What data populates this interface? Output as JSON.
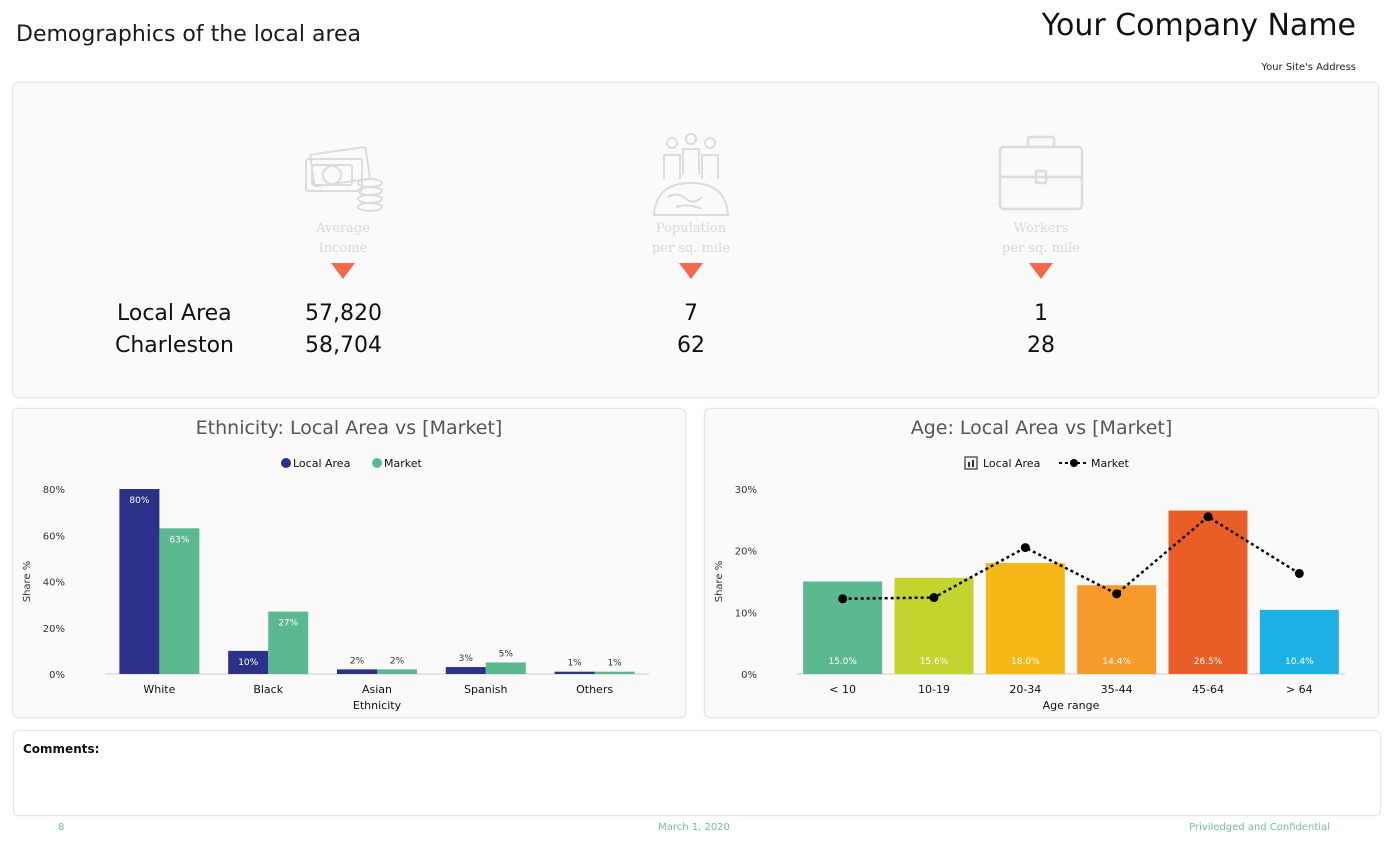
{
  "header": {
    "title": "Demographics of the local area",
    "company": "Your Company Name",
    "address": "Your Site's Address"
  },
  "kpis": {
    "row_labels": [
      "Local Area",
      "Charleston"
    ],
    "items": [
      {
        "icon": "money-icon",
        "caption_line1": "Average",
        "caption_line2": "Income",
        "local": "57,820",
        "market": "58,704"
      },
      {
        "icon": "population-icon",
        "caption_line1": "Population",
        "caption_line2": "per sq. mile",
        "local": "7",
        "market": "62"
      },
      {
        "icon": "briefcase-icon",
        "caption_line1": "Workers",
        "caption_line2": "per sq. mile",
        "local": "1",
        "market": "28"
      }
    ],
    "arrow_color": "#f26a4b"
  },
  "chart_data": [
    {
      "type": "bar",
      "title": "Ethnicity: Local Area vs [Market]",
      "xlabel": "Ethnicity",
      "ylabel": "Share %",
      "ylim": [
        0,
        80
      ],
      "yticks": [
        "0%",
        "20%",
        "40%",
        "60%",
        "80%"
      ],
      "legend_position": "top-center",
      "categories": [
        "White",
        "Black",
        "Asian",
        "Spanish",
        "Others"
      ],
      "series": [
        {
          "name": "Local Area",
          "color": "#2b3088",
          "values": [
            80,
            10,
            2,
            3,
            1
          ],
          "labels": [
            "80%",
            "10%",
            "2%",
            "3%",
            "1%"
          ]
        },
        {
          "name": "Market",
          "color": "#5cb88f",
          "values": [
            63,
            27,
            2,
            5,
            1
          ],
          "labels": [
            "63%",
            "27%",
            "2%",
            "5%",
            "1%"
          ]
        }
      ]
    },
    {
      "type": "bar",
      "title": "Age: Local Area vs [Market]",
      "xlabel": "Age range",
      "ylabel": "Share %",
      "ylim": [
        0,
        30
      ],
      "yticks": [
        "0%",
        "10%",
        "20%",
        "30%"
      ],
      "legend_position": "top-center",
      "categories": [
        "< 10",
        "10-19",
        "20-34",
        "35-44",
        "45-64",
        "> 64"
      ],
      "series": [
        {
          "name": "Local Area",
          "kind": "bar",
          "values": [
            15.0,
            15.6,
            18.0,
            14.4,
            26.5,
            10.4
          ],
          "labels": [
            "15.0%",
            "15.6%",
            "18.0%",
            "14.4%",
            "26.5%",
            "10.4%"
          ],
          "colors": [
            "#5cb88f",
            "#c4d42f",
            "#f6b817",
            "#f59a2b",
            "#e95e26",
            "#1eb1e6"
          ]
        },
        {
          "name": "Market",
          "kind": "line",
          "color": "#000000",
          "values": [
            12.2,
            12.4,
            20.5,
            13.0,
            25.5,
            16.3
          ]
        }
      ]
    }
  ],
  "comments": {
    "label": "Comments:"
  },
  "footer": {
    "page": "8",
    "date": "March 1, 2020",
    "confidential": "Priviledged and Confidential"
  }
}
